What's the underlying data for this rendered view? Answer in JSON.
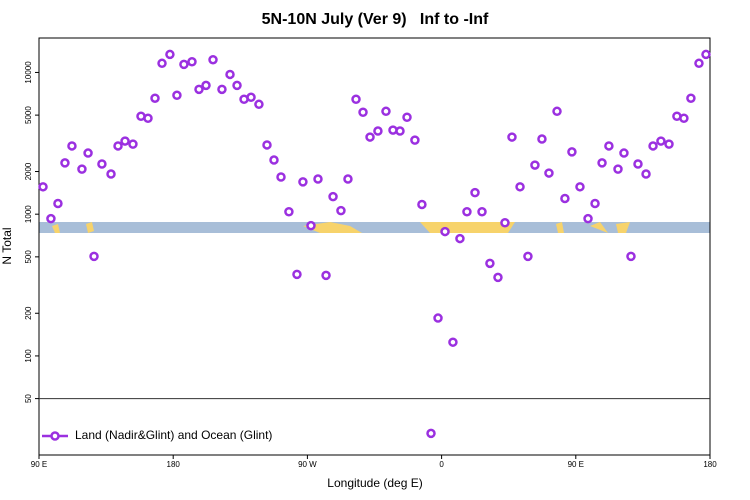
{
  "chart_data": {
    "type": "scatter",
    "title": "5N-10N July (Ver 9)   Inf to -Inf",
    "x_label": "Longitude (deg E)",
    "y_label": "N Total",
    "log_y": true,
    "legend": "bottom-left",
    "hline": 50,
    "xlim": [
      90,
      540
    ],
    "xticks": [
      {
        "value": 90,
        "label": "90 E"
      },
      180,
      {
        "value": 270,
        "label": "90 W"
      },
      {
        "value": 360,
        "label": "0"
      },
      {
        "value": 450,
        "label": "90 E"
      },
      {
        "value": 540,
        "label": "180"
      }
    ],
    "ylim": [
      20,
      17500
    ],
    "yticks": [
      50,
      100,
      200,
      500,
      1000,
      2000,
      5000,
      10000
    ],
    "series": [
      {
        "name": "Land (Nadir&Glint) and Ocean (Glint)",
        "color": "#9b30e0",
        "x": [
          92.7,
          98,
          102.7,
          107.4,
          112.1,
          118.8,
          122.9,
          126.9,
          132.2,
          138.3,
          143,
          147.7,
          153,
          158.4,
          163.1,
          167.8,
          172.5,
          177.8,
          182.5,
          187.2,
          192.6,
          197.3,
          202,
          206.7,
          212.7,
          218.1,
          222.8,
          227.5,
          232.2,
          237.5,
          242.9,
          247.6,
          252.3,
          257.6,
          263,
          267,
          272.4,
          277.1,
          282.5,
          287.2,
          292.5,
          297.2,
          302.6,
          307.3,
          312,
          317.3,
          322.7,
          327.4,
          332.1,
          336.8,
          342.1,
          346.8,
          352.9,
          357.6,
          362.3,
          367.6,
          372.3,
          377,
          382.4,
          387.1,
          392.4,
          397.8,
          402.5,
          407.2,
          412.6,
          417.9,
          422.6,
          427.3,
          432,
          437.4,
          442.7,
          447.4,
          452.8,
          458.2,
          462.9,
          467.6,
          472.2,
          478.3,
          482.3,
          487,
          491.7,
          497.1,
          501.8,
          507.1,
          512.5,
          517.8,
          522.5,
          527.2,
          532.6,
          537.3
        ],
        "values": [
          1560,
          930,
          1190,
          2300,
          3030,
          2080,
          2700,
          504,
          2260,
          1920,
          3030,
          3280,
          3120,
          4910,
          4750,
          6580,
          11600,
          13400,
          6900,
          11400,
          11900,
          7600,
          8100,
          12300,
          7600,
          9680,
          8100,
          6470,
          6680,
          5960,
          3080,
          2410,
          1830,
          1040,
          376,
          1690,
          830,
          1770,
          370,
          1330,
          1060,
          1770,
          6470,
          5240,
          3500,
          3860,
          5320,
          3920,
          3860,
          4830,
          3330,
          1170,
          28.4,
          185,
          754,
          125,
          673,
          1040,
          1420,
          1040,
          450,
          358,
          870,
          3500,
          1560,
          504,
          2220,
          3390,
          1950,
          5320,
          1290,
          2750,
          1560,
          930,
          1190,
          2300,
          3030,
          2080,
          2700,
          504,
          2260,
          1920,
          3030,
          3280,
          3120,
          4910,
          4750,
          6580,
          11600,
          13400
        ]
      }
    ]
  }
}
